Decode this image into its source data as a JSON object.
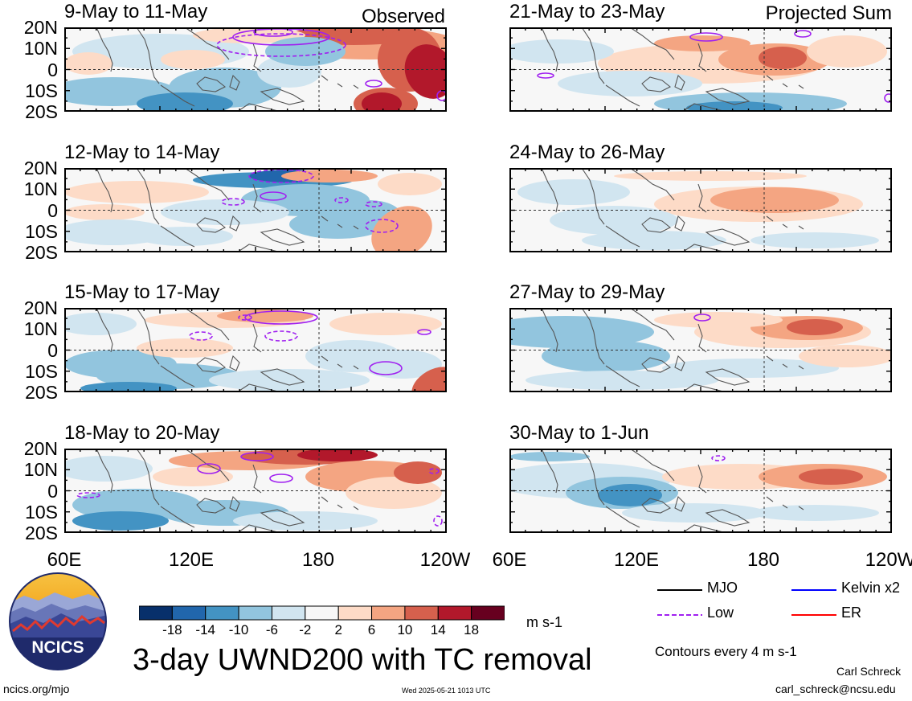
{
  "figure": {
    "title": "3-day UWND200 with TC removal",
    "units": "m s-1",
    "contour_note": "Contours every 4 m s-1",
    "author": "Carl Schreck",
    "email": "carl_schreck@ncsu.edu",
    "url": "ncics.org/mjo",
    "timestamp": "Wed 2025-05-21 1013 UTC",
    "logo_text": "NCICS"
  },
  "column_tags": {
    "left": "Observed",
    "right": "Projected Sum"
  },
  "lat_labels": [
    "20N",
    "10N",
    "0",
    "10S",
    "20S"
  ],
  "lon_labels": [
    "60E",
    "120E",
    "180",
    "120W"
  ],
  "panels": [
    {
      "title": "9-May to 11-May"
    },
    {
      "title": "21-May to 23-May"
    },
    {
      "title": "12-May to 14-May"
    },
    {
      "title": "24-May to 26-May"
    },
    {
      "title": "15-May to 17-May"
    },
    {
      "title": "27-May to 29-May"
    },
    {
      "title": "18-May to 20-May"
    },
    {
      "title": "30-May to 1-Jun"
    }
  ],
  "colorbar": {
    "labels": [
      "-18",
      "-14",
      "-10",
      "-6",
      "-2",
      "2",
      "6",
      "10",
      "14",
      "18"
    ],
    "colors": [
      "#08306b",
      "#2166ac",
      "#4393c3",
      "#92c5de",
      "#d1e5f0",
      "#f7f7f7",
      "#fddbc7",
      "#f4a582",
      "#d6604d",
      "#b2182b",
      "#67001f"
    ]
  },
  "legend": [
    {
      "label": "MJO",
      "color": "#000000",
      "dash": false
    },
    {
      "label": "Kelvin x2",
      "color": "#0000ff",
      "dash": false
    },
    {
      "label": "Low",
      "color": "#a020f0",
      "dash": true
    },
    {
      "label": "ER",
      "color": "#ff0000",
      "dash": false
    }
  ]
}
